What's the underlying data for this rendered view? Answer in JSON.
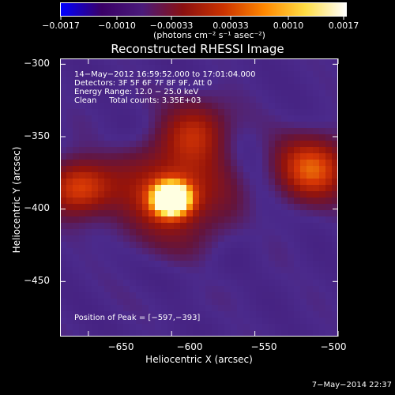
{
  "colorbar": {
    "tick_labels": [
      "−0.0017",
      "−0.0010",
      "−0.00033",
      "0.00033",
      "0.0010",
      "0.0017"
    ],
    "units": "(photons cm⁻² s⁻¹ asec⁻²)",
    "colors": [
      "#0000ff",
      "#3a0066",
      "#4a1a7a",
      "#8a1010",
      "#cc3300",
      "#ff8800",
      "#ffdd44",
      "#ffffff"
    ]
  },
  "title": "Reconstructed RHESSI Image",
  "info": {
    "time_range": "14−May−2012 16:59:52.000 to 17:01:04.000",
    "detectors": "Detectors: 3F 5F 6F 7F 8F 9F, Att 0",
    "energy": "Energy Range: 12.0 − 25.0 keV",
    "method": "Clean     Total counts: 3.35E+03"
  },
  "peak": "Position of Peak = [−597,−393]",
  "axes": {
    "xlabel": "Heliocentric X (arcsec)",
    "ylabel": "Heliocentric Y (arcsec)",
    "xlim": [
      -667,
      -500
    ],
    "ylim": [
      -488,
      -296
    ],
    "x_ticks": [
      -650,
      -600,
      -550,
      -500
    ],
    "x_tick_labels": [
      "−650",
      "−600",
      "−550",
      "−500"
    ],
    "y_ticks": [
      -300,
      -350,
      -400,
      -450
    ],
    "y_tick_labels": [
      "−300",
      "−350",
      "−400",
      "−450"
    ]
  },
  "image": {
    "background_color": "#4b2a8c",
    "sources": [
      {
        "x": -600,
        "y": -393,
        "amplitude": 1.0,
        "sigma": 7
      },
      {
        "x": -600,
        "y": -390,
        "amplitude": 0.55,
        "sigma": 20
      },
      {
        "x": -655,
        "y": -385,
        "amplitude": 0.5,
        "sigma": 13
      },
      {
        "x": -515,
        "y": -372,
        "amplitude": 0.52,
        "sigma": 15
      },
      {
        "x": -585,
        "y": -345,
        "amplitude": 0.35,
        "sigma": 14
      }
    ]
  },
  "timestamp": "7−May−2014 22:37"
}
